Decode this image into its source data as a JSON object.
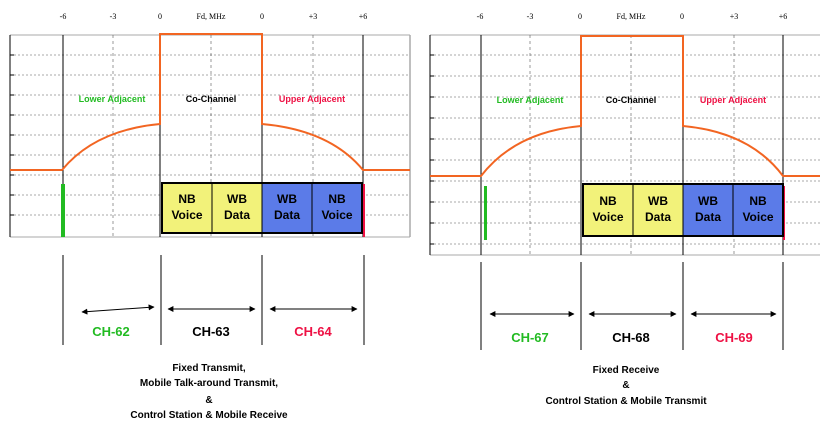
{
  "colors": {
    "curve": "#f26522",
    "lower": "#22bb22",
    "upper": "#ee1144",
    "nb_box": "#f2f27a",
    "wb_box": "#5b7be8"
  },
  "panels": [
    {
      "ticks": {
        "m6": "-6",
        "m3": "-3",
        "z1": "0",
        "axis": "Fd, MHz",
        "z2": "0",
        "p3": "+3",
        "p6": "+6"
      },
      "regions": {
        "lower": "Lower Adjacent",
        "co": "Co-Channel",
        "upper": "Upper Adjacent"
      },
      "boxes": [
        {
          "top": "NB",
          "bottom": "Voice"
        },
        {
          "top": "WB",
          "bottom": "Data"
        },
        {
          "top": "WB",
          "bottom": "Data"
        },
        {
          "top": "NB",
          "bottom": "Voice"
        }
      ],
      "channels": {
        "lower": "CH-62",
        "co": "CH-63",
        "upper": "CH-64"
      },
      "caption": [
        "Fixed Transmit,",
        "Mobile Talk-around Transmit,",
        "&",
        "Control Station & Mobile Receive"
      ]
    },
    {
      "ticks": {
        "m6": "-6",
        "m3": "-3",
        "z1": "0",
        "axis": "Fd, MHz",
        "z2": "0",
        "p3": "+3",
        "p6": "+6"
      },
      "regions": {
        "lower": "Lower Adjacent",
        "co": "Co-Channel",
        "upper": "Upper Adjacent"
      },
      "boxes": [
        {
          "top": "NB",
          "bottom": "Voice"
        },
        {
          "top": "WB",
          "bottom": "Data"
        },
        {
          "top": "WB",
          "bottom": "Data"
        },
        {
          "top": "NB",
          "bottom": "Voice"
        }
      ],
      "channels": {
        "lower": "CH-67",
        "co": "CH-68",
        "upper": "CH-69"
      },
      "caption": [
        "Fixed Receive",
        "&",
        "Control Station & Mobile Transmit"
      ]
    }
  ]
}
